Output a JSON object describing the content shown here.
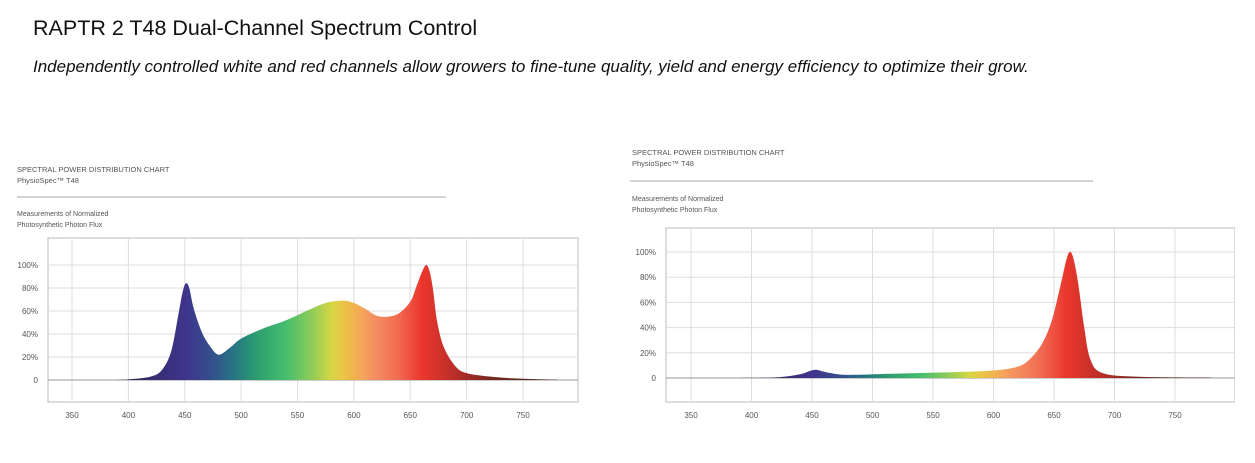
{
  "page": {
    "title": "RAPTR 2 T48 Dual-Channel Spectrum Control",
    "subtitle": "Independently controlled white and red channels allow growers to fine-tune quality, yield and energy efficiency to optimize their grow."
  },
  "chart_data": [
    {
      "type": "area",
      "heading_line1": "SPECTRAL POWER DISTRIBUTION CHART",
      "heading_line2": "PhysioSpec™ T48",
      "measure_line1": "Measurements of Normalized",
      "measure_line2": "Photosynthetic Photon Flux",
      "xlim": [
        340,
        790
      ],
      "ylim": [
        0,
        100
      ],
      "x_ticks": [
        350,
        400,
        450,
        500,
        550,
        600,
        650,
        700,
        750
      ],
      "y_ticks": [
        0,
        20,
        40,
        60,
        80,
        100
      ],
      "y_tick_labels": [
        "0",
        "20%",
        "40%",
        "60%",
        "80%",
        "100%"
      ],
      "grid": true,
      "x": [
        380,
        400,
        420,
        430,
        438,
        444,
        448,
        451,
        454,
        458,
        465,
        472,
        480,
        490,
        500,
        520,
        540,
        560,
        575,
        590,
        600,
        610,
        620,
        630,
        640,
        650,
        655,
        660,
        664,
        667,
        670,
        674,
        680,
        690,
        700,
        720,
        740,
        760,
        780
      ],
      "y": [
        0,
        0.5,
        3,
        9,
        25,
        55,
        76,
        84,
        80,
        62,
        42,
        30,
        22,
        28,
        36,
        45,
        52,
        61,
        67,
        69,
        67,
        62,
        56,
        55,
        58,
        68,
        80,
        93,
        100,
        95,
        80,
        50,
        28,
        12,
        6,
        3,
        1.5,
        0.8,
        0.3
      ]
    },
    {
      "type": "area",
      "heading_line1": "SPECTRAL POWER DISTRIBUTION CHART",
      "heading_line2": "PhysioSpec™ T48",
      "measure_line1": "Measurements of Normalized",
      "measure_line2": "Photosynthetic Photon Flux",
      "xlim": [
        340,
        790
      ],
      "ylim": [
        0,
        100
      ],
      "x_ticks": [
        350,
        400,
        450,
        500,
        550,
        600,
        650,
        700,
        750
      ],
      "y_ticks": [
        0,
        20,
        40,
        60,
        80,
        100
      ],
      "y_tick_labels": [
        "0",
        "20%",
        "40%",
        "60%",
        "80%",
        "100%"
      ],
      "grid": true,
      "x": [
        380,
        420,
        440,
        448,
        453,
        458,
        465,
        480,
        520,
        560,
        600,
        620,
        630,
        640,
        648,
        655,
        660,
        663,
        666,
        670,
        675,
        680,
        690,
        720,
        780
      ],
      "y": [
        0,
        0.5,
        3,
        5.5,
        6.5,
        5.5,
        4,
        2.5,
        3.5,
        4.5,
        6,
        9,
        15,
        27,
        45,
        72,
        93,
        100,
        95,
        75,
        40,
        15,
        4,
        1,
        0.3
      ]
    }
  ]
}
